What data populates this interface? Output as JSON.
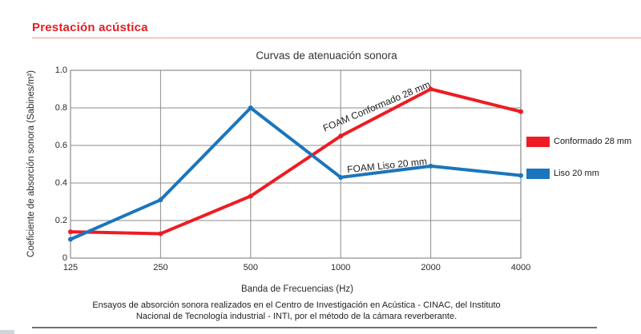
{
  "page": {
    "section_title": "Prestación acústica",
    "footer_line1": "Ensayos de absorción sonora realizados en el Centro de Investigación en Acústica - CINAC, del Instituto",
    "footer_line2": "Nacional de Tecnología industrial - INTI, por el método de la cámara reverberante."
  },
  "colors": {
    "accent_red": "#e31e24",
    "series_red": "#ed1c24",
    "series_blue": "#1b75bc",
    "grid": "#8c8c8c"
  },
  "chart_data": {
    "type": "line",
    "title": "Curvas de atenuación sonora",
    "xlabel": "Banda de Frecuencias (Hz)",
    "ylabel": "Coeficiente de absorción sonora (Sabines/m²)",
    "categories": [
      "125",
      "250",
      "500",
      "1000",
      "2000",
      "4000"
    ],
    "ylim": [
      0,
      1.0
    ],
    "yticks": [
      1.0,
      0.8,
      0.6,
      0.4,
      0.2,
      0
    ],
    "ytick_labels": [
      "1.0",
      "0.8",
      "0.6",
      "0.4",
      "0.2",
      "0"
    ],
    "grid": true,
    "legend_position": "right",
    "series": [
      {
        "name": "Conformado 28 mm",
        "inline_label": "FOAM Conformado 28 mm",
        "color": "#ed1c24",
        "values": [
          0.14,
          0.13,
          0.33,
          0.65,
          0.9,
          0.78
        ]
      },
      {
        "name": "Liso 20 mm",
        "inline_label": "FOAM Liso 20 mm",
        "color": "#1b75bc",
        "values": [
          0.1,
          0.31,
          0.8,
          0.43,
          0.49,
          0.44
        ]
      }
    ]
  }
}
